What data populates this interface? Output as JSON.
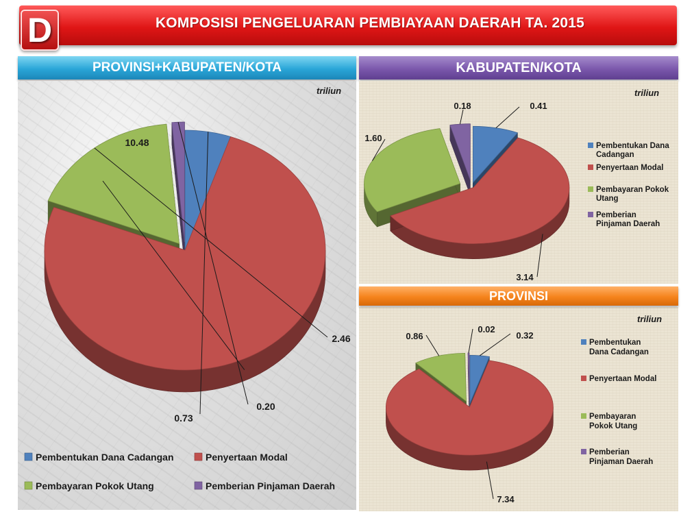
{
  "header": {
    "badge": "D",
    "title": "KOMPOSISI PENGELUARAN PEMBIAYAAN DAERAH TA. 2015"
  },
  "sections": {
    "left": "PROVINSI+KABUPATEN/KOTA",
    "right_top": "KABUPATEN/KOTA",
    "right_bottom": "PROVINSI"
  },
  "unit": "triliun",
  "colors": {
    "dana_cadangan": "#4f81bd",
    "penyertaan_modal": "#c0504d",
    "pokok_utang": "#9bbb59",
    "pinjaman_daerah": "#8064a2"
  },
  "chart_data": [
    {
      "type": "pie",
      "id": "provinsi_kabkota",
      "title": "PROVINSI+KABUPATEN/KOTA",
      "unit": "triliun",
      "legend_position": "bottom",
      "categories": [
        "Pembentukan Dana Cadangan",
        "Penyertaan Modal",
        "Pembayaran Pokok Utang",
        "Pemberian Pinjaman Daerah"
      ],
      "labels": [
        "0.73",
        "10.48",
        "2.46",
        "0.20"
      ],
      "values": [
        0.73,
        10.48,
        2.46,
        0.2
      ]
    },
    {
      "type": "pie",
      "id": "kabupaten_kota",
      "title": "KABUPATEN/KOTA",
      "unit": "triliun",
      "legend_position": "right",
      "categories": [
        "Pembentukan Dana Cadangan",
        "Penyertaan Modal",
        "Pembayaran Pokok Utang",
        "Pemberian Pinjaman Daerah"
      ],
      "legend_lines": [
        [
          "Pembentukan Dana",
          "Cadangan"
        ],
        [
          "Penyertaan Modal"
        ],
        [
          "Pembayaran Pokok",
          "Utang"
        ],
        [
          "Pemberian",
          "Pinjaman Daerah"
        ]
      ],
      "labels": [
        "0.41",
        "3.14",
        "1.60",
        "0.18"
      ],
      "values": [
        0.41,
        3.14,
        1.6,
        0.18
      ]
    },
    {
      "type": "pie",
      "id": "provinsi",
      "title": "PROVINSI",
      "unit": "triliun",
      "legend_position": "right",
      "categories": [
        "Pembentukan Dana Cadangan",
        "Penyertaan Modal",
        "Pembayaran Pokok Utang",
        "Pemberian Pinjaman Daerah"
      ],
      "legend_lines": [
        [
          "Pembentukan",
          "Dana Cadangan"
        ],
        [
          "Penyertaan Modal"
        ],
        [
          "Pembayaran",
          "Pokok Utang"
        ],
        [
          "Pemberian",
          "Pinjaman Daerah"
        ]
      ],
      "labels": [
        "0.32",
        "7.34",
        "0.86",
        "0.02"
      ],
      "values": [
        0.32,
        7.34,
        0.86,
        0.02
      ]
    }
  ]
}
